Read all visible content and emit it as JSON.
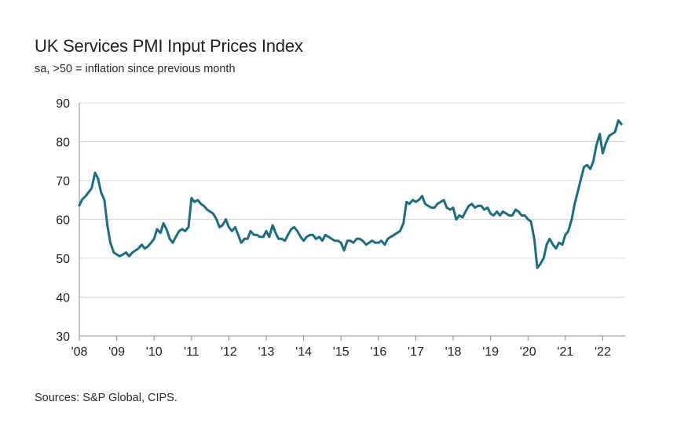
{
  "chart_data": {
    "type": "line",
    "title": "UK Services PMI Input Prices Index",
    "subtitle": "sa, >50 = inflation since previous month",
    "source": "Sources: S&P Global, CIPS.",
    "xlabel": "",
    "ylabel": "",
    "ylim": [
      30,
      90
    ],
    "yticks": [
      30,
      40,
      50,
      60,
      70,
      80,
      90
    ],
    "xlim": [
      2008.0,
      2022.6
    ],
    "xticks": [
      {
        "value": 2008,
        "label": "'08"
      },
      {
        "value": 2009,
        "label": "'09"
      },
      {
        "value": 2010,
        "label": "'10"
      },
      {
        "value": 2011,
        "label": "'11"
      },
      {
        "value": 2012,
        "label": "'12"
      },
      {
        "value": 2013,
        "label": "'13"
      },
      {
        "value": 2014,
        "label": "'14"
      },
      {
        "value": 2015,
        "label": "'15"
      },
      {
        "value": 2016,
        "label": "'16"
      },
      {
        "value": 2017,
        "label": "'17"
      },
      {
        "value": 2018,
        "label": "'18"
      },
      {
        "value": 2019,
        "label": "'19"
      },
      {
        "value": 2020,
        "label": "'20"
      },
      {
        "value": 2021,
        "label": "'21"
      },
      {
        "value": 2022,
        "label": "'22"
      }
    ],
    "grid": true,
    "colors": {
      "line": "#1a6e80",
      "grid": "#d9d9d9",
      "axis": "#8c8c8c"
    },
    "series": [
      {
        "name": "UK Services PMI Input Prices Index",
        "x": [
          2008.0,
          2008.08,
          2008.17,
          2008.25,
          2008.33,
          2008.42,
          2008.5,
          2008.58,
          2008.67,
          2008.75,
          2008.83,
          2008.92,
          2009.0,
          2009.08,
          2009.17,
          2009.25,
          2009.33,
          2009.42,
          2009.5,
          2009.58,
          2009.67,
          2009.75,
          2009.83,
          2009.92,
          2010.0,
          2010.08,
          2010.17,
          2010.25,
          2010.33,
          2010.42,
          2010.5,
          2010.58,
          2010.67,
          2010.75,
          2010.83,
          2010.92,
          2011.0,
          2011.08,
          2011.17,
          2011.25,
          2011.33,
          2011.42,
          2011.5,
          2011.58,
          2011.67,
          2011.75,
          2011.83,
          2011.92,
          2012.0,
          2012.08,
          2012.17,
          2012.25,
          2012.33,
          2012.42,
          2012.5,
          2012.58,
          2012.67,
          2012.75,
          2012.83,
          2012.92,
          2013.0,
          2013.08,
          2013.17,
          2013.25,
          2013.33,
          2013.42,
          2013.5,
          2013.58,
          2013.67,
          2013.75,
          2013.83,
          2013.92,
          2014.0,
          2014.08,
          2014.17,
          2014.25,
          2014.33,
          2014.42,
          2014.5,
          2014.58,
          2014.67,
          2014.75,
          2014.83,
          2014.92,
          2015.0,
          2015.08,
          2015.17,
          2015.25,
          2015.33,
          2015.42,
          2015.5,
          2015.58,
          2015.67,
          2015.75,
          2015.83,
          2015.92,
          2016.0,
          2016.08,
          2016.17,
          2016.25,
          2016.33,
          2016.42,
          2016.5,
          2016.58,
          2016.67,
          2016.75,
          2016.83,
          2016.92,
          2017.0,
          2017.08,
          2017.17,
          2017.25,
          2017.33,
          2017.42,
          2017.5,
          2017.58,
          2017.67,
          2017.75,
          2017.83,
          2017.92,
          2018.0,
          2018.08,
          2018.17,
          2018.25,
          2018.33,
          2018.42,
          2018.5,
          2018.58,
          2018.67,
          2018.75,
          2018.83,
          2018.92,
          2019.0,
          2019.08,
          2019.17,
          2019.25,
          2019.33,
          2019.42,
          2019.5,
          2019.58,
          2019.67,
          2019.75,
          2019.83,
          2019.92,
          2020.0,
          2020.08,
          2020.17,
          2020.25,
          2020.33,
          2020.42,
          2020.5,
          2020.58,
          2020.67,
          2020.75,
          2020.83,
          2020.92,
          2021.0,
          2021.08,
          2021.17,
          2021.25,
          2021.33,
          2021.42,
          2021.5,
          2021.58,
          2021.67,
          2021.75,
          2021.83,
          2021.92,
          2022.0,
          2022.08,
          2022.17,
          2022.25,
          2022.33,
          2022.42,
          2022.5
        ],
        "values": [
          63.6,
          65.2,
          66.0,
          67.0,
          68.0,
          72.0,
          70.5,
          67.0,
          65.0,
          58.5,
          54.0,
          51.5,
          51.0,
          50.5,
          51.0,
          51.5,
          50.5,
          51.5,
          52.0,
          52.5,
          53.5,
          52.5,
          53.0,
          54.0,
          55.0,
          57.5,
          56.5,
          59.0,
          57.5,
          55.0,
          54.0,
          55.5,
          57.0,
          57.5,
          57.0,
          58.0,
          65.5,
          64.5,
          65.0,
          64.0,
          63.5,
          62.5,
          62.0,
          61.5,
          60.0,
          58.0,
          58.5,
          60.0,
          58.0,
          57.0,
          58.0,
          56.0,
          54.0,
          55.0,
          55.0,
          57.0,
          56.0,
          56.0,
          55.5,
          55.5,
          57.0,
          55.5,
          58.5,
          56.5,
          55.0,
          55.0,
          54.5,
          56.0,
          57.5,
          58.0,
          57.0,
          55.5,
          54.5,
          55.5,
          56.0,
          56.0,
          55.0,
          55.5,
          54.5,
          56.0,
          55.5,
          55.0,
          54.5,
          54.5,
          54.0,
          52.0,
          54.5,
          54.5,
          54.0,
          55.0,
          55.0,
          54.5,
          53.5,
          54.0,
          54.5,
          54.0,
          54.0,
          54.5,
          53.5,
          55.0,
          55.5,
          56.0,
          56.5,
          57.0,
          59.0,
          64.5,
          64.0,
          65.0,
          64.5,
          65.0,
          66.0,
          64.0,
          63.5,
          63.0,
          63.0,
          64.0,
          64.5,
          65.0,
          63.0,
          62.5,
          63.0,
          60.0,
          61.0,
          60.5,
          62.0,
          63.5,
          64.0,
          63.0,
          63.5,
          63.5,
          62.5,
          63.0,
          61.5,
          61.0,
          62.0,
          61.0,
          62.0,
          61.5,
          61.0,
          61.0,
          62.5,
          62.0,
          61.0,
          61.0,
          60.0,
          59.5,
          55.0,
          47.5,
          48.5,
          50.0,
          53.5,
          55.0,
          53.5,
          52.5,
          54.0,
          53.5,
          56.0,
          57.0,
          60.0,
          64.0,
          67.0,
          70.5,
          73.5,
          74.0,
          73.0,
          75.0,
          79.0,
          82.0,
          77.0,
          79.5,
          81.5,
          82.0,
          82.5,
          85.5,
          84.5
        ]
      }
    ]
  }
}
